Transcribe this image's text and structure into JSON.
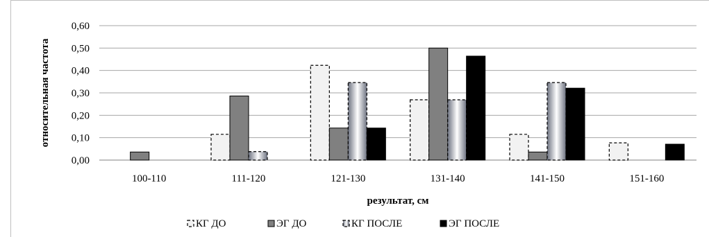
{
  "chart_data": {
    "type": "bar",
    "categories": [
      "100-110",
      "111-120",
      "121-130",
      "131-140",
      "141-150",
      "151-160"
    ],
    "series": [
      {
        "name": "КГ ДО",
        "values": [
          0,
          0.115,
          0.423,
          0.269,
          0.115,
          0.077
        ],
        "color": "#f2f2f2",
        "style": "dashed-outline"
      },
      {
        "name": "ЭГ ДО",
        "values": [
          0.036,
          0.286,
          0.143,
          0.5,
          0.036,
          0
        ],
        "color": "#808080",
        "style": "solid-outline"
      },
      {
        "name": "КГ ПОСЛЕ",
        "values": [
          0,
          0.038,
          0.346,
          0.269,
          0.346,
          0
        ],
        "color": "#a6a6a6",
        "style": "gradient-dashed"
      },
      {
        "name": "ЭГ ПОСЛЕ",
        "values": [
          0,
          0,
          0.143,
          0.464,
          0.321,
          0.071
        ],
        "color": "#000000",
        "style": "solid"
      }
    ],
    "yticks": [
      "0,00",
      "0,10",
      "0,20",
      "0,30",
      "0,40",
      "0,50",
      "0,60"
    ],
    "ylim": [
      0,
      0.6
    ],
    "xlabel": "результат, см",
    "ylabel": "относительная частота",
    "grid": true,
    "legend_position": "bottom"
  }
}
